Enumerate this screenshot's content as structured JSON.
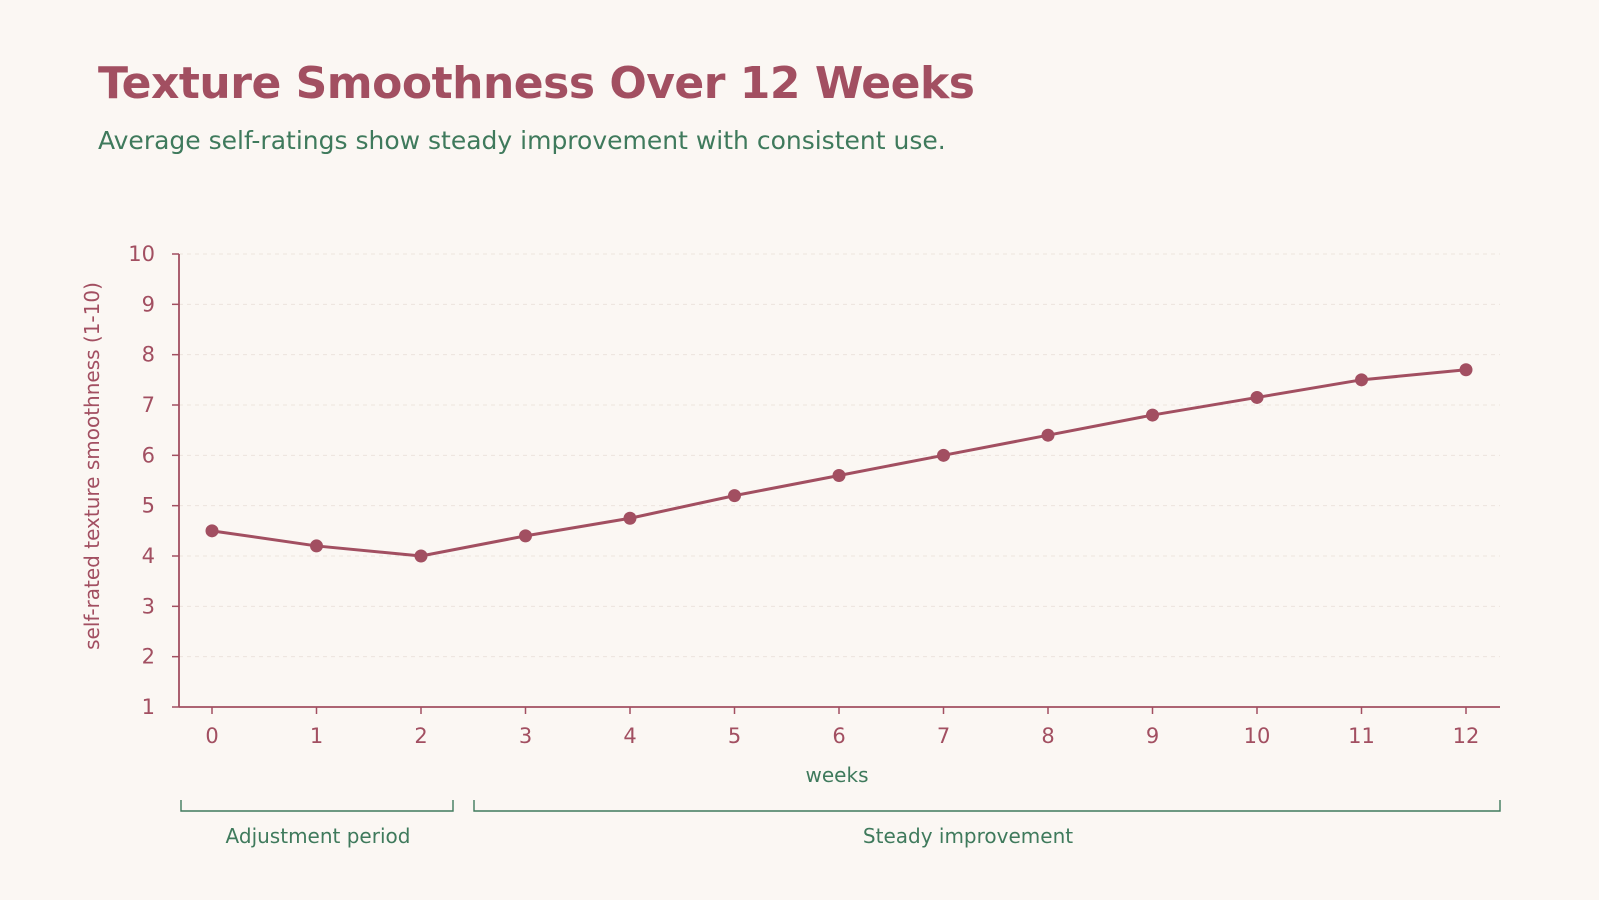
{
  "header": {
    "title": "Texture Smoothness Over 12 Weeks",
    "subtitle": "Average self-ratings show steady improvement with consistent use."
  },
  "colors": {
    "background": "#fbf7f3",
    "series": "#a24f61",
    "accent": "#3f7a5c",
    "grid": "#ece4de"
  },
  "chart_data": {
    "type": "line",
    "title": "Texture Smoothness Over 12 Weeks",
    "subtitle": "Average self-ratings show steady improvement with consistent use.",
    "xlabel": "weeks",
    "ylabel": "self-rated texture smoothness (1-10)",
    "x": [
      0,
      1,
      2,
      3,
      4,
      5,
      6,
      7,
      8,
      9,
      10,
      11,
      12
    ],
    "xlim": [
      0,
      12
    ],
    "ylim": [
      1,
      10
    ],
    "yticks": [
      1,
      2,
      3,
      4,
      5,
      6,
      7,
      8,
      9,
      10
    ],
    "grid": true,
    "grid_style": "dashed-horizontal",
    "series": [
      {
        "values": [
          4.5,
          4.2,
          4.0,
          4.4,
          4.75,
          5.2,
          5.6,
          6.0,
          6.4,
          6.8,
          7.15,
          7.5,
          7.7
        ],
        "color": "#a24f61"
      }
    ],
    "annotations": [
      {
        "label": "Adjustment period",
        "from": 0,
        "to": 2
      },
      {
        "label": "Steady improvement",
        "from": 3,
        "to": 12
      }
    ]
  }
}
